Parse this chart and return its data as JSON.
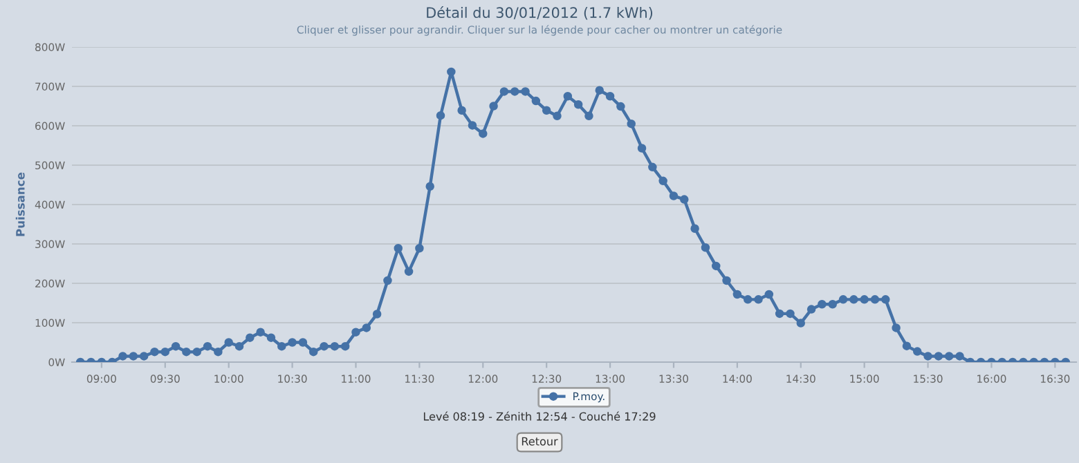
{
  "chart_data": {
    "type": "line",
    "title": "Détail du 30/01/2012 (1.7 kWh)",
    "subtitle": "Cliquer et glisser pour agrandir. Cliquer sur la légende pour cacher ou montrer un catégorie",
    "ylabel": "Puissance",
    "annotations": [
      "Levé 08:19 - Zénith 12:54 - Couché 17:29",
      "Retour"
    ],
    "x": [
      "2012-01-30T08:50",
      "2012-01-30T08:55",
      "2012-01-30T09:00",
      "2012-01-30T09:05",
      "2012-01-30T09:10",
      "2012-01-30T09:15",
      "2012-01-30T09:20",
      "2012-01-30T09:25",
      "2012-01-30T09:30",
      "2012-01-30T09:35",
      "2012-01-30T09:40",
      "2012-01-30T09:45",
      "2012-01-30T09:50",
      "2012-01-30T09:55",
      "2012-01-30T10:00",
      "2012-01-30T10:05",
      "2012-01-30T10:10",
      "2012-01-30T10:15",
      "2012-01-30T10:20",
      "2012-01-30T10:25",
      "2012-01-30T10:30",
      "2012-01-30T10:35",
      "2012-01-30T10:40",
      "2012-01-30T10:45",
      "2012-01-30T10:50",
      "2012-01-30T10:55",
      "2012-01-30T11:00",
      "2012-01-30T11:05",
      "2012-01-30T11:10",
      "2012-01-30T11:15",
      "2012-01-30T11:20",
      "2012-01-30T11:25",
      "2012-01-30T11:30",
      "2012-01-30T11:35",
      "2012-01-30T11:40",
      "2012-01-30T11:45",
      "2012-01-30T11:50",
      "2012-01-30T11:55",
      "2012-01-30T12:00",
      "2012-01-30T12:05",
      "2012-01-30T12:10",
      "2012-01-30T12:15",
      "2012-01-30T12:20",
      "2012-01-30T12:25",
      "2012-01-30T12:30",
      "2012-01-30T12:35",
      "2012-01-30T12:40",
      "2012-01-30T12:45",
      "2012-01-30T12:50",
      "2012-01-30T12:55",
      "2012-01-30T13:00",
      "2012-01-30T13:05",
      "2012-01-30T13:10",
      "2012-01-30T13:15",
      "2012-01-30T13:20",
      "2012-01-30T13:25",
      "2012-01-30T13:30",
      "2012-01-30T13:35",
      "2012-01-30T13:40",
      "2012-01-30T13:45",
      "2012-01-30T13:50",
      "2012-01-30T13:55",
      "2012-01-30T14:00",
      "2012-01-30T14:05",
      "2012-01-30T14:10",
      "2012-01-30T14:15",
      "2012-01-30T14:20",
      "2012-01-30T14:25",
      "2012-01-30T14:30",
      "2012-01-30T14:35",
      "2012-01-30T14:40",
      "2012-01-30T14:45",
      "2012-01-30T14:50",
      "2012-01-30T14:55",
      "2012-01-30T15:00",
      "2012-01-30T15:05",
      "2012-01-30T15:10",
      "2012-01-30T15:15",
      "2012-01-30T15:20",
      "2012-01-30T15:25",
      "2012-01-30T15:30",
      "2012-01-30T15:35",
      "2012-01-30T15:40",
      "2012-01-30T15:45",
      "2012-01-30T15:50",
      "2012-01-30T15:55",
      "2012-01-30T16:00",
      "2012-01-30T16:05",
      "2012-01-30T16:10",
      "2012-01-30T16:15",
      "2012-01-30T16:20",
      "2012-01-30T16:25",
      "2012-01-30T16:30",
      "2012-01-30T16:35"
    ],
    "series": [
      {
        "name": "P.moy.",
        "color": "#4572a7",
        "values": [
          0,
          0,
          0,
          0,
          15,
          15,
          15,
          26,
          26,
          40,
          26,
          26,
          40,
          26,
          50,
          40,
          62,
          76,
          62,
          40,
          50,
          50,
          26,
          40,
          40,
          40,
          76,
          87,
          122,
          207,
          289,
          230,
          289,
          446,
          626,
          737,
          639,
          601,
          580,
          650,
          687,
          687,
          687,
          663,
          639,
          625,
          675,
          654,
          625,
          690,
          675,
          649,
          605,
          543,
          495,
          460,
          422,
          413,
          339,
          291,
          244,
          207,
          172,
          159,
          159,
          172,
          123,
          123,
          99,
          134,
          147,
          147,
          159,
          159,
          159,
          159,
          159,
          87,
          41,
          27,
          15,
          15,
          15,
          15,
          0,
          0,
          0,
          0,
          0,
          0,
          0,
          0,
          0,
          0
        ]
      }
    ],
    "xlim": [
      "2012-01-30T08:46",
      "2012-01-30T16:40"
    ],
    "xticks": [
      {
        "value": "2012-01-30T09:00",
        "label": "09:00"
      },
      {
        "value": "2012-01-30T09:30",
        "label": "09:30"
      },
      {
        "value": "2012-01-30T10:00",
        "label": "10:00"
      },
      {
        "value": "2012-01-30T10:30",
        "label": "10:30"
      },
      {
        "value": "2012-01-30T11:00",
        "label": "11:00"
      },
      {
        "value": "2012-01-30T11:30",
        "label": "11:30"
      },
      {
        "value": "2012-01-30T12:00",
        "label": "12:00"
      },
      {
        "value": "2012-01-30T12:30",
        "label": "12:30"
      },
      {
        "value": "2012-01-30T13:00",
        "label": "13:00"
      },
      {
        "value": "2012-01-30T13:30",
        "label": "13:30"
      },
      {
        "value": "2012-01-30T14:00",
        "label": "14:00"
      },
      {
        "value": "2012-01-30T14:30",
        "label": "14:30"
      },
      {
        "value": "2012-01-30T15:00",
        "label": "15:00"
      },
      {
        "value": "2012-01-30T15:30",
        "label": "15:30"
      },
      {
        "value": "2012-01-30T16:00",
        "label": "16:00"
      },
      {
        "value": "2012-01-30T16:30",
        "label": "16:30"
      }
    ],
    "ylim": [
      0,
      800
    ],
    "yticks": [
      {
        "value": 0,
        "label": "0W"
      },
      {
        "value": 100,
        "label": "100W"
      },
      {
        "value": 200,
        "label": "200W"
      },
      {
        "value": 300,
        "label": "300W"
      },
      {
        "value": 400,
        "label": "400W"
      },
      {
        "value": 500,
        "label": "500W"
      },
      {
        "value": 600,
        "label": "600W"
      },
      {
        "value": 700,
        "label": "700W"
      },
      {
        "value": 800,
        "label": "800W"
      }
    ],
    "grid": "y",
    "legend": "bottom",
    "marker": "circle",
    "line_style": "solid"
  }
}
